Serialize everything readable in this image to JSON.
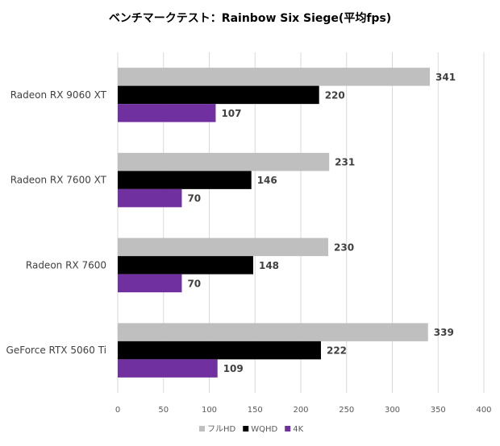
{
  "chart_data": {
    "type": "bar",
    "orientation": "horizontal",
    "title": "ベンチマークテスト：Rainbow Six Siege(平均fps)",
    "categories": [
      "Radeon RX 9060 XT",
      "Radeon RX 7600 XT",
      "Radeon RX 7600",
      "GeForce RTX 5060 Ti"
    ],
    "series": [
      {
        "name": "フルHD",
        "color": "#bfbfbf",
        "values": [
          341,
          231,
          230,
          339
        ]
      },
      {
        "name": "WQHD",
        "color": "#000000",
        "values": [
          220,
          146,
          148,
          222
        ]
      },
      {
        "name": "4K",
        "color": "#7030a0",
        "values": [
          107,
          70,
          70,
          109
        ]
      }
    ],
    "xlim": [
      0,
      400
    ],
    "xticks": [
      0,
      50,
      100,
      150,
      200,
      250,
      300,
      350,
      400
    ],
    "grid": true,
    "legend": "bottom",
    "xlabel": "",
    "ylabel": ""
  }
}
